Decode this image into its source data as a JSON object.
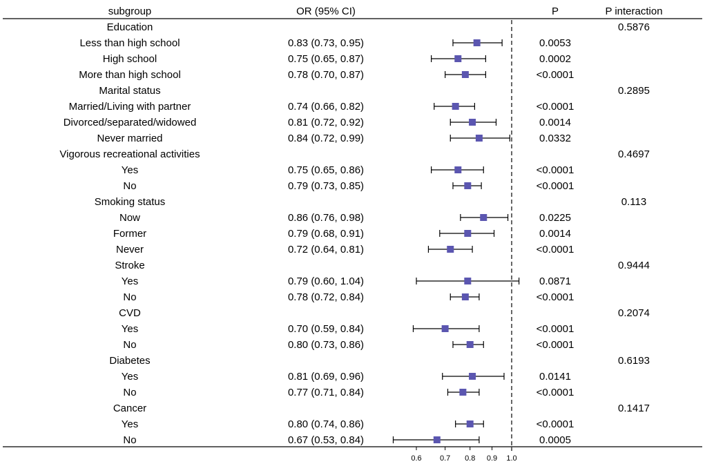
{
  "chart_data": {
    "type": "forest",
    "columns": {
      "subgroup": "subgroup",
      "or": "OR (95% CI)",
      "p": "P",
      "p_interaction": "P interaction"
    },
    "x_axis": {
      "scale": "log",
      "range": [
        0.5,
        1.3
      ],
      "reference_line": 1.0,
      "ticks": [
        0.6,
        0.7,
        0.8,
        0.9,
        1.0
      ],
      "tick_labels": [
        "0.6",
        "0.7",
        "0.8",
        "0.9",
        "1.0"
      ]
    },
    "marker_color": "#5b56b0",
    "rows": [
      {
        "label": "Education",
        "header": true,
        "p_interaction": "0.5876"
      },
      {
        "label": "Less than high school",
        "or_text": "0.83 (0.73, 0.95)",
        "or": 0.83,
        "lo": 0.73,
        "hi": 0.95,
        "p": "0.0053"
      },
      {
        "label": "High school",
        "or_text": "0.75 (0.65, 0.87)",
        "or": 0.75,
        "lo": 0.65,
        "hi": 0.87,
        "p": "0.0002"
      },
      {
        "label": "More than high school",
        "or_text": "0.78 (0.70, 0.87)",
        "or": 0.78,
        "lo": 0.7,
        "hi": 0.87,
        "p": "<0.0001"
      },
      {
        "label": "Marital status",
        "header": true,
        "p_interaction": "0.2895"
      },
      {
        "label": "Married/Living with partner",
        "or_text": "0.74 (0.66, 0.82)",
        "or": 0.74,
        "lo": 0.66,
        "hi": 0.82,
        "p": "<0.0001"
      },
      {
        "label": "Divorced/separated/widowed",
        "or_text": "0.81 (0.72, 0.92)",
        "or": 0.81,
        "lo": 0.72,
        "hi": 0.92,
        "p": "0.0014"
      },
      {
        "label": "Never married",
        "or_text": "0.84 (0.72, 0.99)",
        "or": 0.84,
        "lo": 0.72,
        "hi": 0.99,
        "p": "0.0332"
      },
      {
        "label": "Vigorous recreational activities",
        "header": true,
        "p_interaction": "0.4697"
      },
      {
        "label": "Yes",
        "or_text": "0.75 (0.65, 0.86)",
        "or": 0.75,
        "lo": 0.65,
        "hi": 0.86,
        "p": "<0.0001"
      },
      {
        "label": "No",
        "or_text": "0.79 (0.73, 0.85)",
        "or": 0.79,
        "lo": 0.73,
        "hi": 0.85,
        "p": "<0.0001"
      },
      {
        "label": "Smoking status",
        "header": true,
        "p_interaction": "0.113"
      },
      {
        "label": "Now",
        "or_text": "0.86 (0.76, 0.98)",
        "or": 0.86,
        "lo": 0.76,
        "hi": 0.98,
        "p": "0.0225"
      },
      {
        "label": "Former",
        "or_text": "0.79 (0.68, 0.91)",
        "or": 0.79,
        "lo": 0.68,
        "hi": 0.91,
        "p": "0.0014"
      },
      {
        "label": "Never",
        "or_text": "0.72 (0.64, 0.81)",
        "or": 0.72,
        "lo": 0.64,
        "hi": 0.81,
        "p": "<0.0001"
      },
      {
        "label": "Stroke",
        "header": true,
        "p_interaction": "0.9444"
      },
      {
        "label": "Yes",
        "or_text": "0.79 (0.60, 1.04)",
        "or": 0.79,
        "lo": 0.6,
        "hi": 1.04,
        "p": "0.0871"
      },
      {
        "label": "No",
        "or_text": "0.78 (0.72, 0.84)",
        "or": 0.78,
        "lo": 0.72,
        "hi": 0.84,
        "p": "<0.0001"
      },
      {
        "label": "CVD",
        "header": true,
        "p_interaction": "0.2074"
      },
      {
        "label": "Yes",
        "or_text": "0.70 (0.59, 0.84)",
        "or": 0.7,
        "lo": 0.59,
        "hi": 0.84,
        "p": "<0.0001"
      },
      {
        "label": "No",
        "or_text": "0.80 (0.73, 0.86)",
        "or": 0.8,
        "lo": 0.73,
        "hi": 0.86,
        "p": "<0.0001"
      },
      {
        "label": "Diabetes",
        "header": true,
        "p_interaction": "0.6193"
      },
      {
        "label": "Yes",
        "or_text": "0.81 (0.69, 0.96)",
        "or": 0.81,
        "lo": 0.69,
        "hi": 0.96,
        "p": "0.0141"
      },
      {
        "label": "No",
        "or_text": "0.77 (0.71, 0.84)",
        "or": 0.77,
        "lo": 0.71,
        "hi": 0.84,
        "p": "<0.0001"
      },
      {
        "label": "Cancer",
        "header": true,
        "p_interaction": "0.1417"
      },
      {
        "label": "Yes",
        "or_text": "0.80 (0.74, 0.86)",
        "or": 0.8,
        "lo": 0.74,
        "hi": 0.86,
        "p": "<0.0001"
      },
      {
        "label": "No",
        "or_text": "0.67 (0.53, 0.84)",
        "or": 0.67,
        "lo": 0.53,
        "hi": 0.84,
        "p": "0.0005"
      }
    ]
  }
}
